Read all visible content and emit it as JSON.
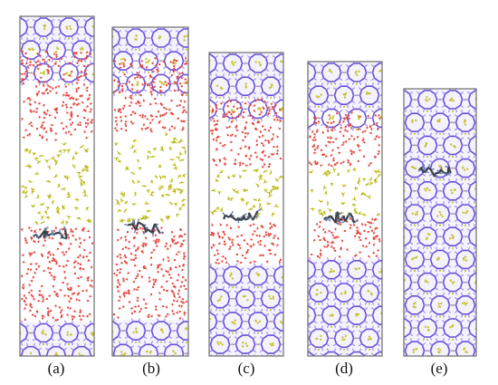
{
  "figure": {
    "colors": {
      "framework_bond": "#6a4fd6",
      "framework_bond_light": "#9a86f0",
      "framework_atom": "#c9c435",
      "water_oxygen": "#e0413a",
      "water_hydrogen": "#f2b2ae",
      "gas_molecule": "#c8c825",
      "solute_dark": "#3a4048",
      "solute_blue": "#6a7fb0",
      "box_border": "#6d6d6d"
    },
    "panels": [
      {
        "label": "(a)",
        "layers": [
          {
            "type": "framework",
            "from": 0.0,
            "to": 0.1
          },
          {
            "type": "water",
            "from": 0.1,
            "to": 0.37
          },
          {
            "type": "gas",
            "from": 0.37,
            "to": 0.62
          },
          {
            "type": "water",
            "from": 0.62,
            "to": 0.9
          },
          {
            "type": "framework",
            "from": 0.9,
            "to": 1.0
          }
        ],
        "solute_at": 0.64
      },
      {
        "label": "(b)",
        "layers": [
          {
            "type": "framework",
            "from": 0.0,
            "to": 0.09
          },
          {
            "type": "water",
            "from": 0.09,
            "to": 0.32
          },
          {
            "type": "gas",
            "from": 0.32,
            "to": 0.6
          },
          {
            "type": "water",
            "from": 0.6,
            "to": 0.89
          },
          {
            "type": "framework",
            "from": 0.89,
            "to": 1.0
          }
        ],
        "solute_at": 0.61
      },
      {
        "label": "(c)",
        "layers": [
          {
            "type": "framework",
            "from": 0.0,
            "to": 0.15
          },
          {
            "type": "water",
            "from": 0.15,
            "to": 0.38
          },
          {
            "type": "gas",
            "from": 0.38,
            "to": 0.56
          },
          {
            "type": "water",
            "from": 0.56,
            "to": 0.7
          },
          {
            "type": "framework",
            "from": 0.7,
            "to": 1.0
          }
        ],
        "solute_at": 0.54
      },
      {
        "label": "(d)",
        "layers": [
          {
            "type": "framework",
            "from": 0.0,
            "to": 0.17
          },
          {
            "type": "water",
            "from": 0.17,
            "to": 0.36
          },
          {
            "type": "gas",
            "from": 0.36,
            "to": 0.53
          },
          {
            "type": "water",
            "from": 0.53,
            "to": 0.67
          },
          {
            "type": "framework",
            "from": 0.67,
            "to": 1.0
          }
        ],
        "solute_at": 0.53
      },
      {
        "label": "(e)",
        "layers": [
          {
            "type": "framework",
            "from": 0.0,
            "to": 1.0
          }
        ],
        "solute_at": 0.31
      }
    ]
  }
}
